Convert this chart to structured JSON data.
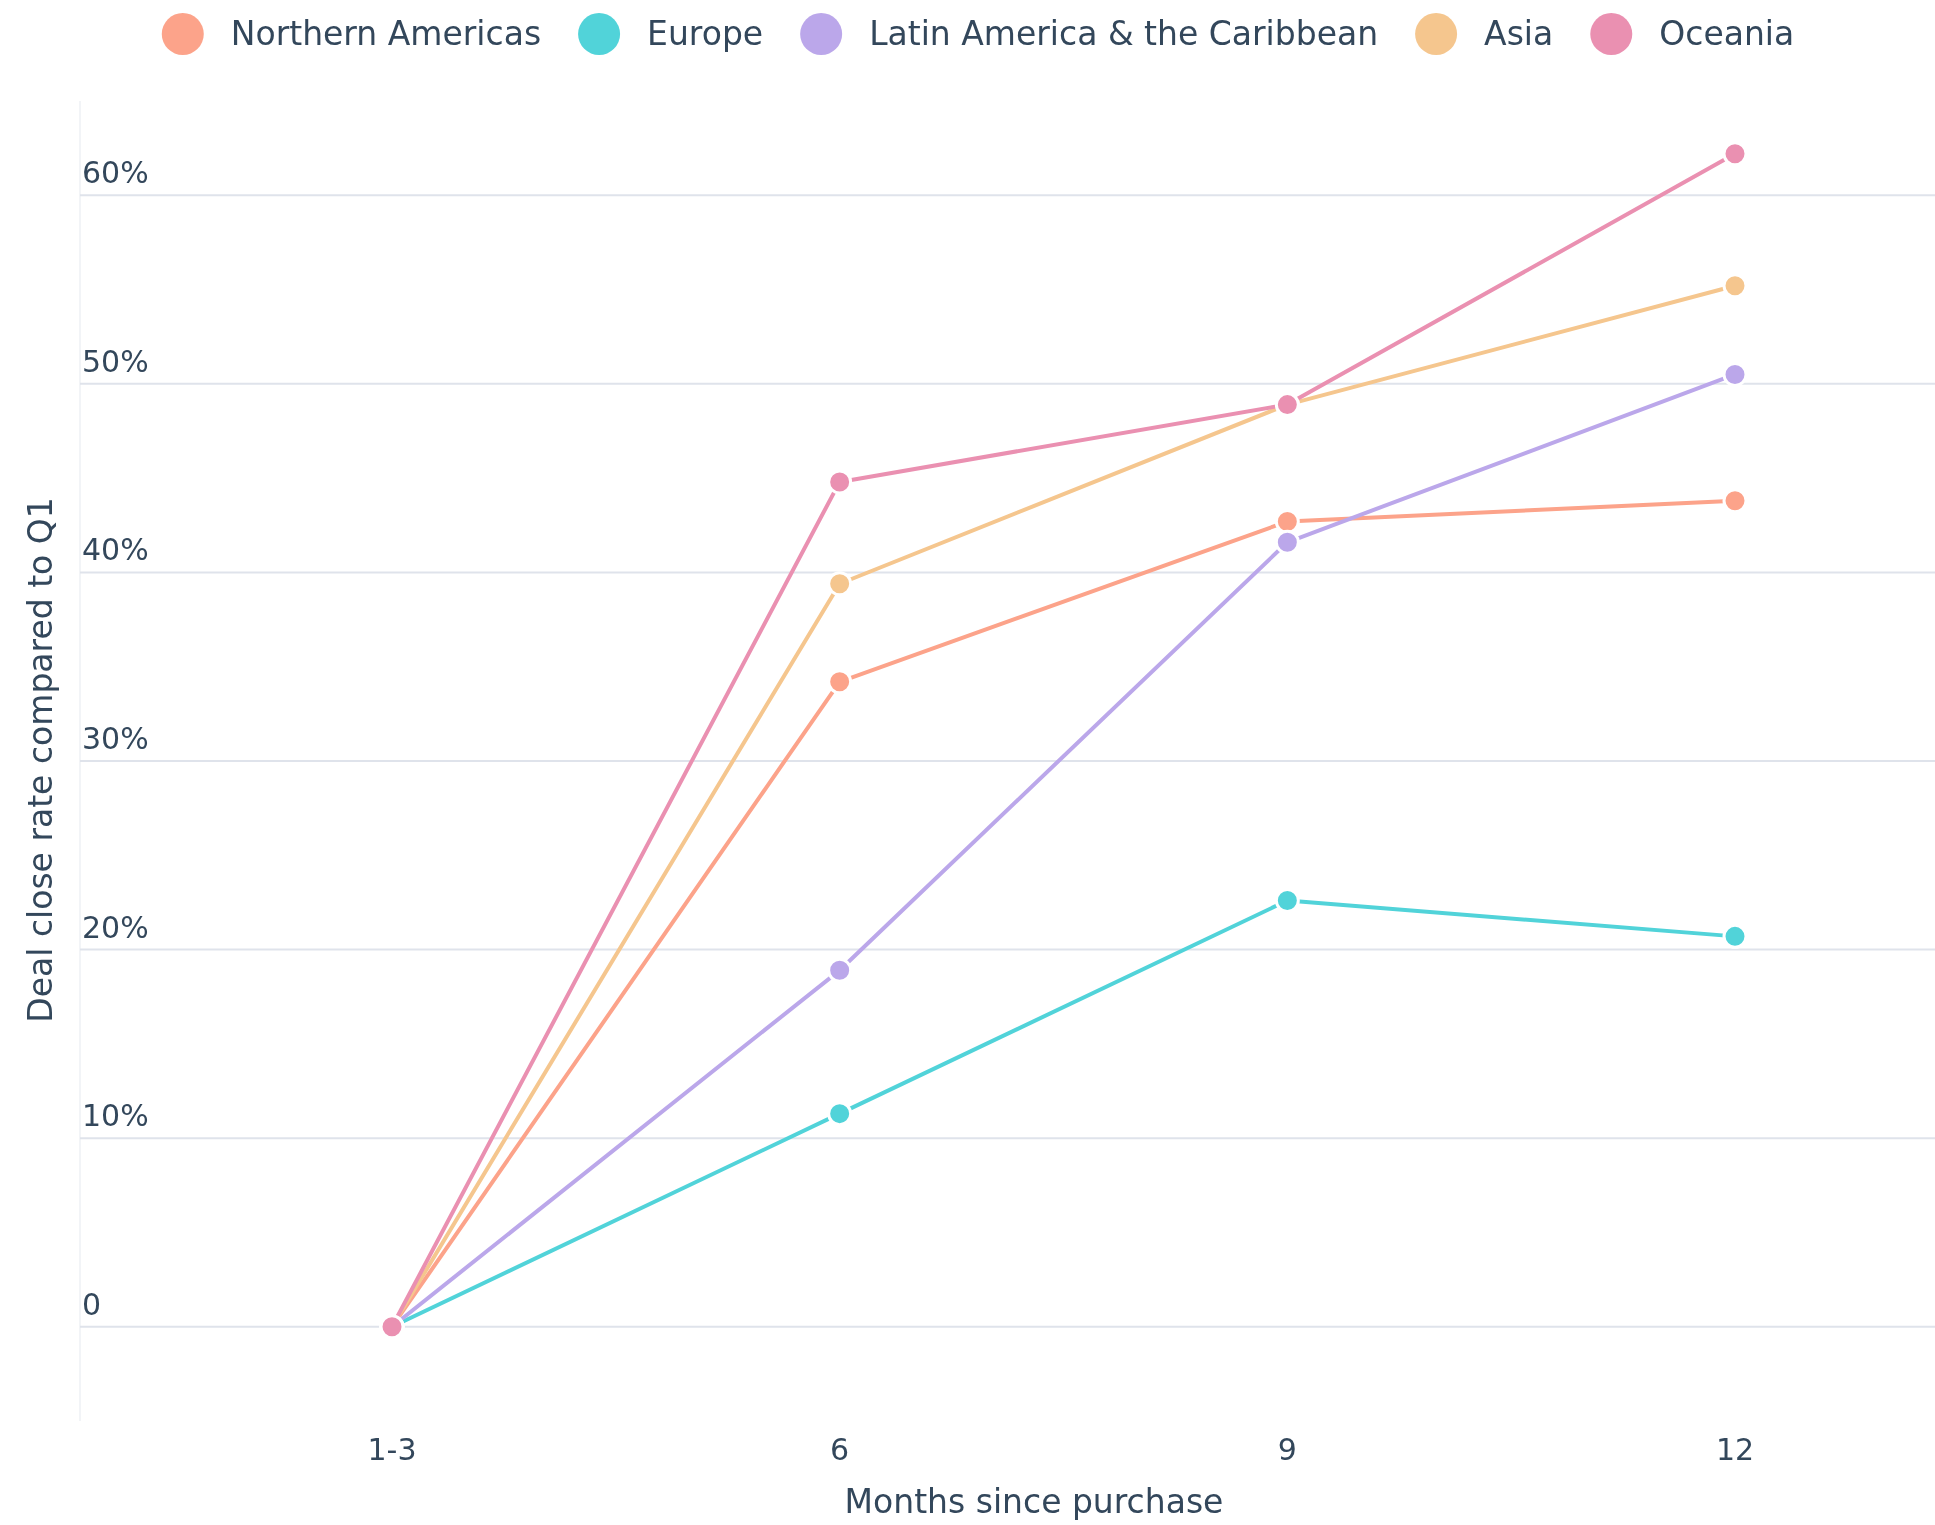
{
  "chart_data": {
    "type": "line",
    "xlabel": "Months since purchase",
    "ylabel": "Deal close rate compared to Q1",
    "categories": [
      "1-3",
      "6",
      "9",
      "12"
    ],
    "ylim": [
      -5,
      65
    ],
    "yticks": [
      {
        "value": 0,
        "label": "0"
      },
      {
        "value": 10,
        "label": "10%"
      },
      {
        "value": 20,
        "label": "20%"
      },
      {
        "value": 30,
        "label": "30%"
      },
      {
        "value": 40,
        "label": "40%"
      },
      {
        "value": 50,
        "label": "50%"
      },
      {
        "value": 60,
        "label": "60%"
      }
    ],
    "grid": "y",
    "legend": "top",
    "marker": "circle",
    "line_style": "solid",
    "series": [
      {
        "name": "Northern Americas",
        "color": "#fca38a",
        "values": [
          0,
          34.2,
          42.7,
          43.8
        ]
      },
      {
        "name": "Europe",
        "color": "#51d3d9",
        "values": [
          0,
          11.3,
          22.6,
          20.7
        ]
      },
      {
        "name": "Latin America & the Caribbean",
        "color": "#bba7ea",
        "values": [
          0,
          18.9,
          41.6,
          50.5
        ]
      },
      {
        "name": "Asia",
        "color": "#f5c68e",
        "values": [
          0,
          39.4,
          48.9,
          55.2
        ]
      },
      {
        "name": "Oceania",
        "color": "#ea90b1",
        "values": [
          0,
          44.8,
          48.9,
          62.2
        ]
      }
    ]
  }
}
